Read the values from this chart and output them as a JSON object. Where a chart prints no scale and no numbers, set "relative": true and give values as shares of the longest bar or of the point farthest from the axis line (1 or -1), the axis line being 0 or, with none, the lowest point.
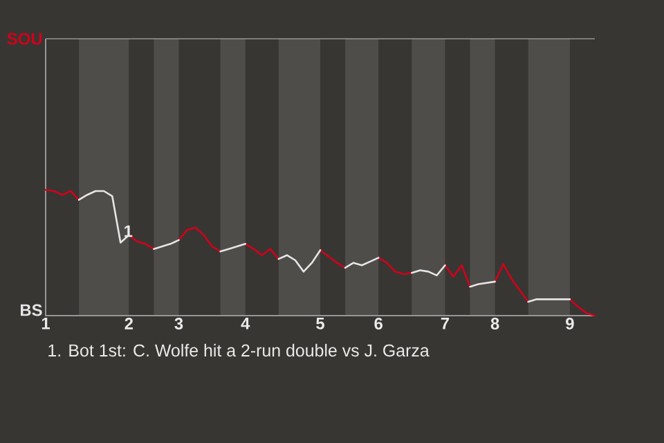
{
  "chart_data": {
    "type": "line",
    "relative": true,
    "categories": [
      "1",
      null,
      null,
      null,
      null,
      null,
      null,
      null,
      null,
      null,
      "2",
      null,
      null,
      null,
      null,
      null,
      "3",
      null,
      null,
      null,
      null,
      null,
      null,
      null,
      "4",
      null,
      null,
      null,
      null,
      null,
      null,
      null,
      null,
      "5",
      null,
      null,
      null,
      null,
      null,
      null,
      "6",
      null,
      null,
      null,
      null,
      null,
      null,
      null,
      "7",
      null,
      null,
      null,
      null,
      null,
      "8",
      null,
      null,
      null,
      null,
      null,
      null,
      null,
      null,
      "9",
      null,
      null,
      null
    ],
    "series": [
      {
        "color": "#d0021b",
        "values": [
          1.0,
          0.99,
          0.96,
          0.99,
          0.92,
          null,
          null,
          null,
          null,
          null,
          0.64,
          0.59,
          0.57,
          0.53,
          null,
          null,
          0.6,
          0.68,
          0.7,
          0.64,
          0.55,
          0.51,
          null,
          null,
          0.57,
          0.53,
          0.48,
          0.53,
          0.45,
          null,
          null,
          null,
          null,
          0.52,
          0.47,
          0.42,
          0.38,
          null,
          null,
          null,
          0.46,
          0.42,
          0.35,
          0.33,
          0.34,
          null,
          null,
          null,
          0.4,
          0.31,
          0.4,
          0.23,
          null,
          null,
          0.27,
          0.41,
          0.29,
          0.2,
          0.11,
          null,
          null,
          null,
          null,
          0.13,
          0.07,
          0.02,
          0
        ]
      },
      {
        "color": "#e6e6e6",
        "values": [
          null,
          null,
          null,
          null,
          0.92,
          0.96,
          0.99,
          0.99,
          0.95,
          0.58,
          0.64,
          null,
          null,
          0.53,
          0.55,
          0.57,
          0.6,
          null,
          null,
          null,
          null,
          0.51,
          0.53,
          0.55,
          0.57,
          null,
          null,
          null,
          0.45,
          0.48,
          0.44,
          0.35,
          0.42,
          0.52,
          null,
          null,
          0.38,
          0.42,
          0.4,
          0.43,
          0.46,
          null,
          null,
          null,
          0.34,
          0.36,
          0.35,
          0.32,
          0.4,
          null,
          null,
          0.23,
          0.25,
          0.26,
          0.27,
          null,
          null,
          null,
          0.11,
          0.13,
          0.13,
          0.13,
          0.13,
          0.13,
          null,
          null,
          null
        ]
      }
    ],
    "annotations": [
      "SOU",
      "BS",
      {
        "text": "1",
        "y": 0.58
      },
      "1. Bot 1st: C. Wolfe hit a 2-run double vs J. Garza"
    ]
  }
}
